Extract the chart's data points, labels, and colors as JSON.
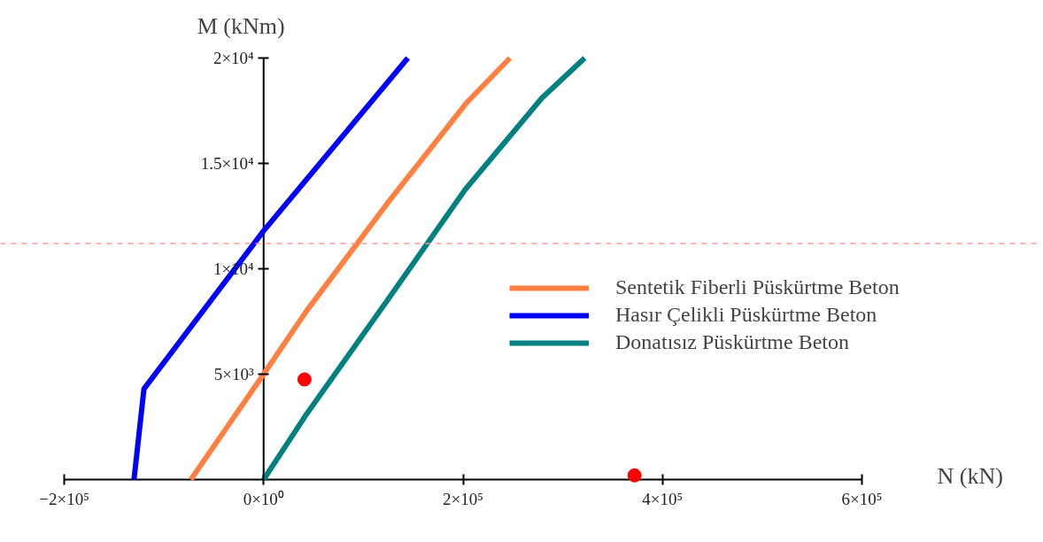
{
  "chart_data": {
    "type": "line",
    "xlabel": "N (kN)",
    "ylabel": "M (kNm)",
    "series": [
      {
        "name": "Sentetik Fiberli Püskürtme Beton",
        "color": "#ff8040",
        "x": [
          -73000,
          0,
          43000,
          124000,
          204000,
          247000
        ],
        "values": [
          0,
          5000,
          8000,
          13100,
          17900,
          20000
        ]
      },
      {
        "name": "Hasır Çelikli Püskürtme Beton",
        "color": "#0000ff",
        "x": [
          -130000,
          -120000,
          0,
          144600
        ],
        "values": [
          0,
          4300,
          11800,
          20000
        ]
      },
      {
        "name": "Donatısız Püskürtme Beton",
        "color": "#008080",
        "x": [
          0,
          43000,
          124000,
          202000,
          279000,
          322000
        ],
        "values": [
          0,
          3100,
          8500,
          13750,
          18100,
          20000
        ]
      },
      {
        "type": "scatter",
        "marker": "circle",
        "color": "#ff0000",
        "x": [
          41000,
          372000
        ],
        "values": [
          4750,
          200
        ]
      }
    ],
    "xlim": [
      -200000,
      600000
    ],
    "ylim": [
      0,
      20000
    ],
    "xticks": [
      {
        "value": -200000,
        "label": "−2×10⁵"
      },
      {
        "value": 0,
        "label": "0×10⁰"
      },
      {
        "value": 200000,
        "label": "2×10⁵"
      },
      {
        "value": 400000,
        "label": "4×10⁵"
      },
      {
        "value": 600000,
        "label": "6×10⁵"
      }
    ],
    "yticks": [
      {
        "value": 5000,
        "label": "5×10³"
      },
      {
        "value": 10000,
        "label": "1×10⁴"
      },
      {
        "value": 15000,
        "label": "1.5×10⁴"
      },
      {
        "value": 20000,
        "label": "2×10⁴"
      }
    ],
    "ref_lines": [
      {
        "axis": "y",
        "value": 11200,
        "color": "#ff9999",
        "line_style": "dashed"
      }
    ],
    "grid": false,
    "legend": "right",
    "marker": "none",
    "line_style": "solid"
  }
}
